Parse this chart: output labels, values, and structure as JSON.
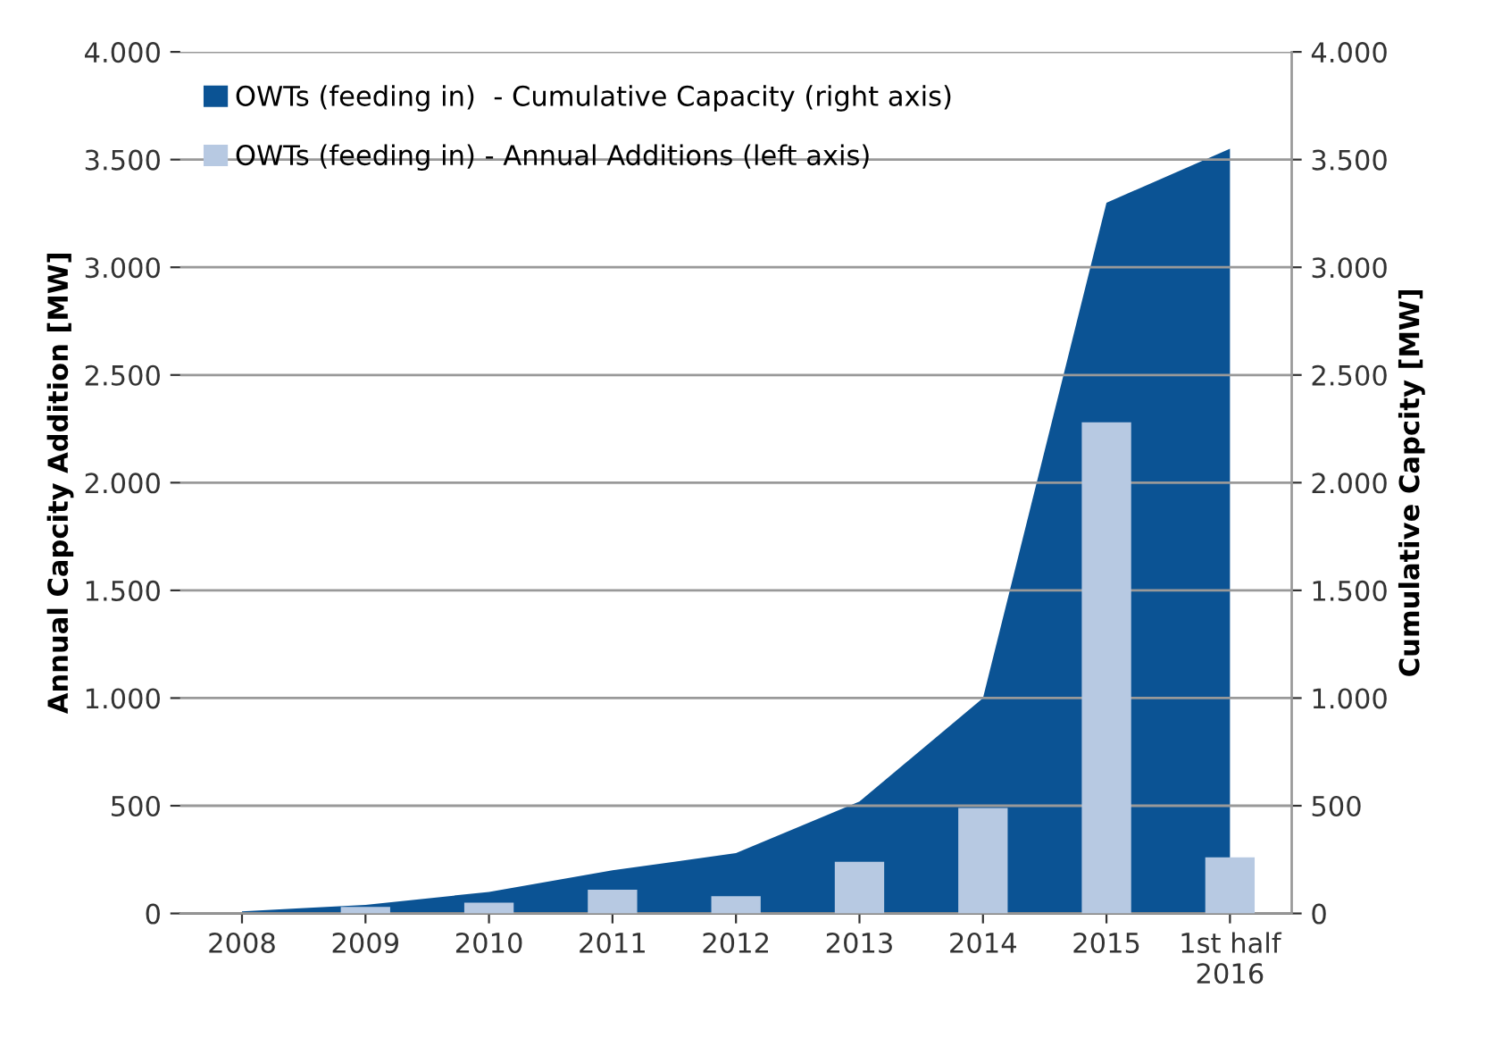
{
  "chart_data": {
    "type": "bar",
    "ylabel": "Annual Capcity Addition [MW]",
    "y2label": "Cumulative Capcity [MW]",
    "categories": [
      "2008",
      "2009",
      "2010",
      "2011",
      "2012",
      "2013",
      "2014",
      "2015",
      "1st half\n2016"
    ],
    "series": [
      {
        "name": "OWTs (feeding in)  - Cumulative Capacity (right axis)",
        "type": "area",
        "axis": "y2",
        "color": "#0b5394",
        "values": [
          10,
          40,
          100,
          200,
          280,
          520,
          1000,
          3300,
          3550
        ]
      },
      {
        "name": "OWTs (feeding in) - Annual Additions (left axis)",
        "color": "#b7c9e2",
        "values": [
          0,
          30,
          50,
          110,
          80,
          240,
          490,
          2280,
          260
        ]
      }
    ],
    "ylim": [
      0,
      4000
    ],
    "yticks": [
      {
        "value": 0,
        "label": "0"
      },
      {
        "value": 500,
        "label": "500"
      },
      {
        "value": 1000,
        "label": "1.000"
      },
      {
        "value": 1500,
        "label": "1.500"
      },
      {
        "value": 2000,
        "label": "2.000"
      },
      {
        "value": 2500,
        "label": "2.500"
      },
      {
        "value": 3000,
        "label": "3.000"
      },
      {
        "value": 3500,
        "label": "3.500"
      },
      {
        "value": 4000,
        "label": "4.000"
      }
    ],
    "y2lim": [
      0,
      4000
    ],
    "y2ticks": [
      {
        "value": 0,
        "label": "0"
      },
      {
        "value": 500,
        "label": "500"
      },
      {
        "value": 1000,
        "label": "1.000"
      },
      {
        "value": 1500,
        "label": "1.500"
      },
      {
        "value": 2000,
        "label": "2.000"
      },
      {
        "value": 2500,
        "label": "2.500"
      },
      {
        "value": 3000,
        "label": "3.000"
      },
      {
        "value": 3500,
        "label": "3.500"
      },
      {
        "value": 4000,
        "label": "4.000"
      }
    ],
    "grid": "y",
    "legend": "top left"
  }
}
